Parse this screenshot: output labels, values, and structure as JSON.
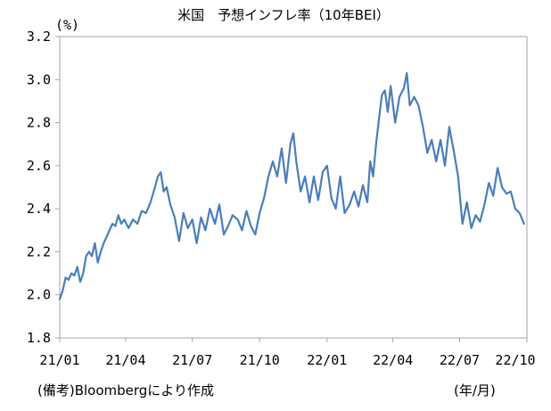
{
  "chart_data": {
    "type": "line",
    "title": "米国　予想インフレ率（10年BEI）",
    "ylabel": "(%)",
    "xlabel": "(年/月)",
    "ylim": [
      1.8,
      3.2
    ],
    "yticks": [
      "3.2",
      "3.0",
      "2.8",
      "2.6",
      "2.4",
      "2.2",
      "2.0",
      "1.8"
    ],
    "xlim": [
      "2021-01-01",
      "2022-10-01"
    ],
    "xticks": [
      {
        "date": "2021-01-01",
        "label": "21/01"
      },
      {
        "date": "2021-04-01",
        "label": "21/04"
      },
      {
        "date": "2021-07-01",
        "label": "21/07"
      },
      {
        "date": "2021-10-01",
        "label": "21/10"
      },
      {
        "date": "2022-01-01",
        "label": "22/01"
      },
      {
        "date": "2022-04-01",
        "label": "22/04"
      },
      {
        "date": "2022-07-01",
        "label": "22/07"
      },
      {
        "date": "2022-10-01",
        "label": "22/10"
      }
    ],
    "grid": false,
    "line_color": "#4a7ebb",
    "series": [
      {
        "x": [
          "2021-01-01",
          "2021-01-05",
          "2021-01-09",
          "2021-01-13",
          "2021-01-17",
          "2021-01-21",
          "2021-01-25",
          "2021-01-29",
          "2021-02-02",
          "2021-02-06",
          "2021-02-10",
          "2021-02-14",
          "2021-02-18",
          "2021-02-22",
          "2021-02-26",
          "2021-03-02",
          "2021-03-06",
          "2021-03-10",
          "2021-03-14",
          "2021-03-18",
          "2021-03-22",
          "2021-03-26",
          "2021-03-30",
          "2021-04-05",
          "2021-04-11",
          "2021-04-17",
          "2021-04-23",
          "2021-04-29",
          "2021-05-05",
          "2021-05-11",
          "2021-05-15",
          "2021-05-19",
          "2021-05-23",
          "2021-05-27",
          "2021-06-01",
          "2021-06-07",
          "2021-06-13",
          "2021-06-19",
          "2021-06-25",
          "2021-07-01",
          "2021-07-07",
          "2021-07-13",
          "2021-07-19",
          "2021-07-25",
          "2021-08-01",
          "2021-08-07",
          "2021-08-13",
          "2021-08-19",
          "2021-08-25",
          "2021-09-01",
          "2021-09-07",
          "2021-09-13",
          "2021-09-19",
          "2021-09-25",
          "2021-10-01",
          "2021-10-07",
          "2021-10-13",
          "2021-10-19",
          "2021-10-25",
          "2021-10-31",
          "2021-11-06",
          "2021-11-12",
          "2021-11-16",
          "2021-11-20",
          "2021-11-26",
          "2021-12-02",
          "2021-12-08",
          "2021-12-14",
          "2021-12-20",
          "2021-12-26",
          "2022-01-01",
          "2022-01-07",
          "2022-01-13",
          "2022-01-19",
          "2022-01-25",
          "2022-02-01",
          "2022-02-07",
          "2022-02-13",
          "2022-02-19",
          "2022-02-25",
          "2022-03-01",
          "2022-03-05",
          "2022-03-09",
          "2022-03-13",
          "2022-03-17",
          "2022-03-21",
          "2022-03-25",
          "2022-03-29",
          "2022-04-04",
          "2022-04-10",
          "2022-04-16",
          "2022-04-20",
          "2022-04-24",
          "2022-04-30",
          "2022-05-06",
          "2022-05-12",
          "2022-05-18",
          "2022-05-24",
          "2022-05-30",
          "2022-06-05",
          "2022-06-11",
          "2022-06-17",
          "2022-06-23",
          "2022-06-29",
          "2022-07-05",
          "2022-07-11",
          "2022-07-17",
          "2022-07-23",
          "2022-07-29",
          "2022-08-04",
          "2022-08-10",
          "2022-08-16",
          "2022-08-22",
          "2022-08-28",
          "2022-09-03",
          "2022-09-09",
          "2022-09-15",
          "2022-09-21",
          "2022-09-27"
        ],
        "y": [
          1.98,
          2.02,
          2.08,
          2.07,
          2.1,
          2.09,
          2.13,
          2.06,
          2.1,
          2.18,
          2.2,
          2.18,
          2.24,
          2.15,
          2.2,
          2.24,
          2.27,
          2.3,
          2.33,
          2.32,
          2.37,
          2.33,
          2.35,
          2.31,
          2.35,
          2.33,
          2.39,
          2.38,
          2.43,
          2.5,
          2.55,
          2.57,
          2.48,
          2.5,
          2.42,
          2.36,
          2.25,
          2.38,
          2.31,
          2.35,
          2.24,
          2.36,
          2.3,
          2.4,
          2.33,
          2.42,
          2.28,
          2.32,
          2.37,
          2.35,
          2.3,
          2.39,
          2.32,
          2.28,
          2.38,
          2.45,
          2.55,
          2.62,
          2.55,
          2.68,
          2.52,
          2.7,
          2.75,
          2.62,
          2.48,
          2.55,
          2.43,
          2.55,
          2.44,
          2.57,
          2.6,
          2.45,
          2.4,
          2.55,
          2.38,
          2.42,
          2.48,
          2.41,
          2.51,
          2.43,
          2.62,
          2.55,
          2.7,
          2.82,
          2.93,
          2.95,
          2.85,
          2.97,
          2.8,
          2.92,
          2.96,
          3.03,
          2.88,
          2.92,
          2.88,
          2.78,
          2.66,
          2.72,
          2.62,
          2.72,
          2.6,
          2.78,
          2.67,
          2.55,
          2.33,
          2.43,
          2.31,
          2.37,
          2.34,
          2.42,
          2.52,
          2.46,
          2.59,
          2.5,
          2.47,
          2.48,
          2.4,
          2.38,
          2.33
        ]
      }
    ]
  },
  "source_note": "(備考)Bloombergにより作成"
}
